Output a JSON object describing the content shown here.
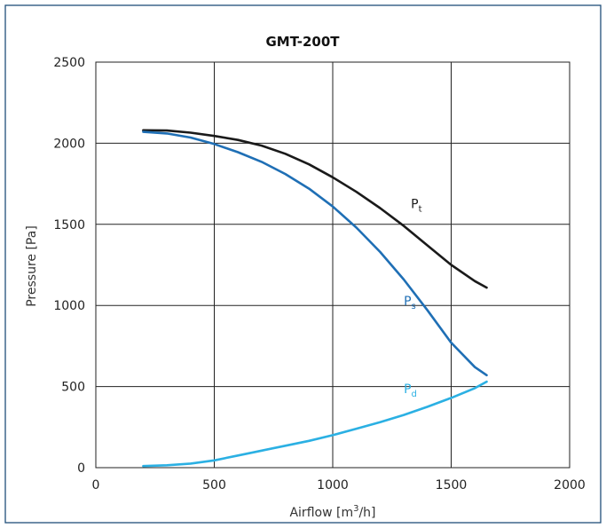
{
  "chart_data": {
    "type": "line",
    "title": "GMT-200T",
    "xlabel": "Airflow [m",
    "xlabel_sup": "3",
    "xlabel_end": "/h]",
    "ylabel": "Pressure [Pa]",
    "xlim": [
      0,
      2000
    ],
    "ylim": [
      0,
      2500
    ],
    "xticks": [
      "0",
      "500",
      "1000",
      "1500",
      "2000"
    ],
    "yticks": [
      "0",
      "500",
      "1000",
      "1500",
      "2000",
      "2500"
    ],
    "grid": true,
    "series": [
      {
        "name": "P",
        "sub": "t",
        "color": "#1a1a1a",
        "label_at": [
          1330,
          1600
        ],
        "x": [
          200,
          300,
          400,
          500,
          600,
          700,
          800,
          900,
          1000,
          1100,
          1200,
          1300,
          1400,
          1500,
          1600,
          1650
        ],
        "y": [
          2080,
          2078,
          2065,
          2045,
          2020,
          1985,
          1935,
          1870,
          1790,
          1700,
          1600,
          1490,
          1370,
          1250,
          1150,
          1110
        ]
      },
      {
        "name": "P",
        "sub": "s",
        "color": "#1f6fb5",
        "label_at": [
          1300,
          1000
        ],
        "x": [
          200,
          300,
          400,
          500,
          600,
          700,
          800,
          900,
          1000,
          1100,
          1200,
          1300,
          1400,
          1500,
          1600,
          1650
        ],
        "y": [
          2070,
          2060,
          2035,
          1995,
          1945,
          1885,
          1810,
          1720,
          1610,
          1480,
          1330,
          1160,
          970,
          770,
          620,
          570
        ]
      },
      {
        "name": "P",
        "sub": "d",
        "color": "#2bb0e3",
        "label_at": [
          1300,
          460
        ],
        "x": [
          200,
          300,
          400,
          500,
          600,
          700,
          800,
          900,
          1000,
          1100,
          1200,
          1300,
          1400,
          1500,
          1600,
          1650
        ],
        "y": [
          10,
          15,
          25,
          45,
          75,
          105,
          135,
          165,
          200,
          240,
          280,
          325,
          375,
          430,
          490,
          530
        ]
      }
    ]
  }
}
